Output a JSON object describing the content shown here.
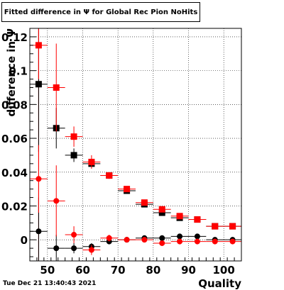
{
  "title": "Fitted difference in  Ψ  for Global Rec Pion NoHits",
  "timestamp": "Tue Dec 21 13:40:43 2021",
  "chart_data": {
    "type": "scatter",
    "xlabel": "Quality",
    "ylabel": "difference in Ψ",
    "xlim": [
      45,
      105
    ],
    "ylim": [
      -0.0125,
      0.125
    ],
    "xticks": [
      50,
      60,
      70,
      80,
      90,
      100
    ],
    "yticks": [
      0,
      0.02,
      0.04,
      0.06,
      0.08,
      0.1,
      0.12
    ],
    "xtick_labels": [
      "50",
      "60",
      "70",
      "80",
      "90",
      "100"
    ],
    "ytick_labels": [
      "0",
      "0.02",
      "0.04",
      "0.06",
      "0.08",
      "0.1",
      "0.12"
    ],
    "grid": true,
    "marker_line_x": 47.5,
    "marker_line_color": "#cc0000",
    "series": [
      {
        "marker": "square",
        "color": "#000000",
        "points": [
          {
            "x": 47.5,
            "y": 0.092,
            "yerr": 0.04
          },
          {
            "x": 52.5,
            "y": 0.066,
            "yerr": 0.012
          },
          {
            "x": 57.5,
            "y": 0.05,
            "yerr": 0.004
          },
          {
            "x": 62.5,
            "y": 0.045,
            "yerr": 0.002
          },
          {
            "x": 67.5,
            "y": 0.038,
            "yerr": 0.001
          },
          {
            "x": 72.5,
            "y": 0.029,
            "yerr": 0.001
          },
          {
            "x": 77.5,
            "y": 0.021,
            "yerr": 0.001
          },
          {
            "x": 82.5,
            "y": 0.016,
            "yerr": 0.001
          },
          {
            "x": 87.5,
            "y": 0.013,
            "yerr": 0.001
          },
          {
            "x": 92.5,
            "y": 0.012,
            "yerr": 0.001
          },
          {
            "x": 97.5,
            "y": 0.008,
            "yerr": 0.001
          },
          {
            "x": 102.5,
            "y": 0.008,
            "yerr": 0.001
          }
        ]
      },
      {
        "marker": "square",
        "color": "#ff0000",
        "points": [
          {
            "x": 47.5,
            "y": 0.115,
            "yerr": 0.02
          },
          {
            "x": 52.5,
            "y": 0.09,
            "yerr": 0.026
          },
          {
            "x": 57.5,
            "y": 0.061,
            "yerr": 0.006
          },
          {
            "x": 62.5,
            "y": 0.046,
            "yerr": 0.004
          },
          {
            "x": 67.5,
            "y": 0.038,
            "yerr": 0.002
          },
          {
            "x": 72.5,
            "y": 0.03,
            "yerr": 0.001
          },
          {
            "x": 77.5,
            "y": 0.022,
            "yerr": 0.001
          },
          {
            "x": 82.5,
            "y": 0.018,
            "yerr": 0.001
          },
          {
            "x": 87.5,
            "y": 0.014,
            "yerr": 0.001
          },
          {
            "x": 92.5,
            "y": 0.012,
            "yerr": 0.001
          },
          {
            "x": 97.5,
            "y": 0.008,
            "yerr": 0.001
          },
          {
            "x": 102.5,
            "y": 0.008,
            "yerr": 0.001
          }
        ]
      },
      {
        "marker": "circle",
        "color": "#000000",
        "points": [
          {
            "x": 47.5,
            "y": 0.005,
            "yerr": 0.02
          },
          {
            "x": 52.5,
            "y": -0.005,
            "yerr": 0.008
          },
          {
            "x": 57.5,
            "y": -0.005,
            "yerr": 0.003
          },
          {
            "x": 62.5,
            "y": -0.004,
            "yerr": 0.002
          },
          {
            "x": 67.5,
            "y": -0.001,
            "yerr": 0.001
          },
          {
            "x": 72.5,
            "y": 0.0,
            "yerr": 0.001
          },
          {
            "x": 77.5,
            "y": 0.001,
            "yerr": 0.001
          },
          {
            "x": 82.5,
            "y": 0.001,
            "yerr": 0.001
          },
          {
            "x": 87.5,
            "y": 0.002,
            "yerr": 0.001
          },
          {
            "x": 92.5,
            "y": 0.002,
            "yerr": 0.001
          },
          {
            "x": 97.5,
            "y": 0.0,
            "yerr": 0.001
          },
          {
            "x": 102.5,
            "y": 0.0,
            "yerr": 0.001
          }
        ]
      },
      {
        "marker": "circle",
        "color": "#ff0000",
        "points": [
          {
            "x": 47.5,
            "y": 0.036,
            "yerr": 0.02
          },
          {
            "x": 52.5,
            "y": 0.023,
            "yerr": 0.021
          },
          {
            "x": 57.5,
            "y": 0.003,
            "yerr": 0.005
          },
          {
            "x": 62.5,
            "y": -0.006,
            "yerr": 0.003
          },
          {
            "x": 67.5,
            "y": 0.001,
            "yerr": 0.002
          },
          {
            "x": 72.5,
            "y": 0.0,
            "yerr": 0.001
          },
          {
            "x": 77.5,
            "y": 0.0,
            "yerr": 0.001
          },
          {
            "x": 82.5,
            "y": -0.002,
            "yerr": 0.001
          },
          {
            "x": 87.5,
            "y": -0.001,
            "yerr": 0.001
          },
          {
            "x": 92.5,
            "y": -0.001,
            "yerr": 0.001
          },
          {
            "x": 97.5,
            "y": -0.001,
            "yerr": 0.001
          },
          {
            "x": 102.5,
            "y": -0.001,
            "yerr": 0.001
          }
        ]
      }
    ]
  }
}
